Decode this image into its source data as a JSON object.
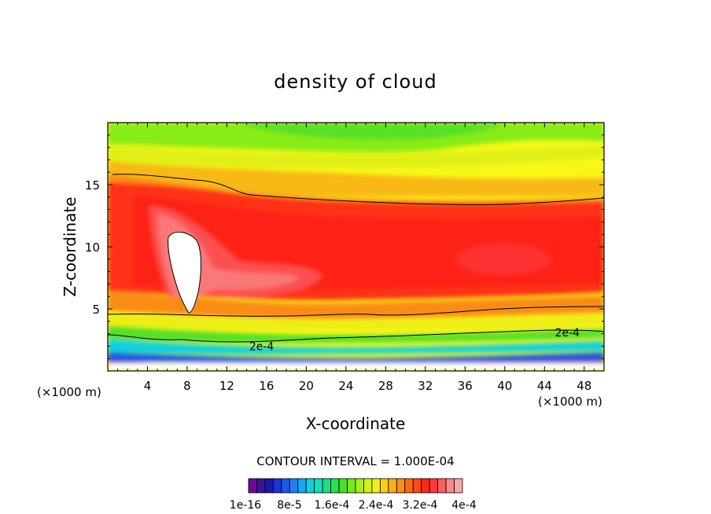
{
  "chart_data": {
    "type": "heatmap",
    "title": "density of cloud",
    "xlabel": "X-coordinate",
    "ylabel": "Z-coordinate",
    "x_unit_left": "(×1000 m)",
    "x_unit_right": "(×1000 m)",
    "xlim": [
      0,
      50
    ],
    "ylim": [
      0,
      20
    ],
    "xticks": [
      4,
      8,
      12,
      16,
      20,
      24,
      28,
      32,
      36,
      40,
      44,
      48
    ],
    "yticks": [
      5,
      10,
      15
    ],
    "contour_interval_text": "CONTOUR INTERVAL = 1.000E-04",
    "contour_labels": [
      {
        "text": "2e-4",
        "x": 15.5,
        "z": 2.0
      },
      {
        "text": "2e-4",
        "x": 46.3,
        "z": 3.1
      }
    ],
    "colorbar": {
      "tick_labels": [
        "1e-16",
        "8e-5",
        "1.6e-4",
        "2.4e-4",
        "3.2e-4",
        "4e-4"
      ],
      "colors": [
        "#6a0aa0",
        "#3a1298",
        "#1a1aa8",
        "#1c34d0",
        "#1e58e6",
        "#1e80f0",
        "#14a8ee",
        "#10d0e0",
        "#10e0b8",
        "#18e088",
        "#28e050",
        "#48e028",
        "#78e818",
        "#a8ee18",
        "#d0f018",
        "#eeee18",
        "#f4d018",
        "#f8b018",
        "#fa8c18",
        "#fc6818",
        "#fe4818",
        "#fe2818",
        "#fc3838",
        "#fa6060",
        "#f88a8a",
        "#f8a8a8"
      ]
    },
    "field_notes": "Cloud density field over x 0-50 km, z 0-20 km; maximum (white core) near x=8, z=5-11"
  }
}
